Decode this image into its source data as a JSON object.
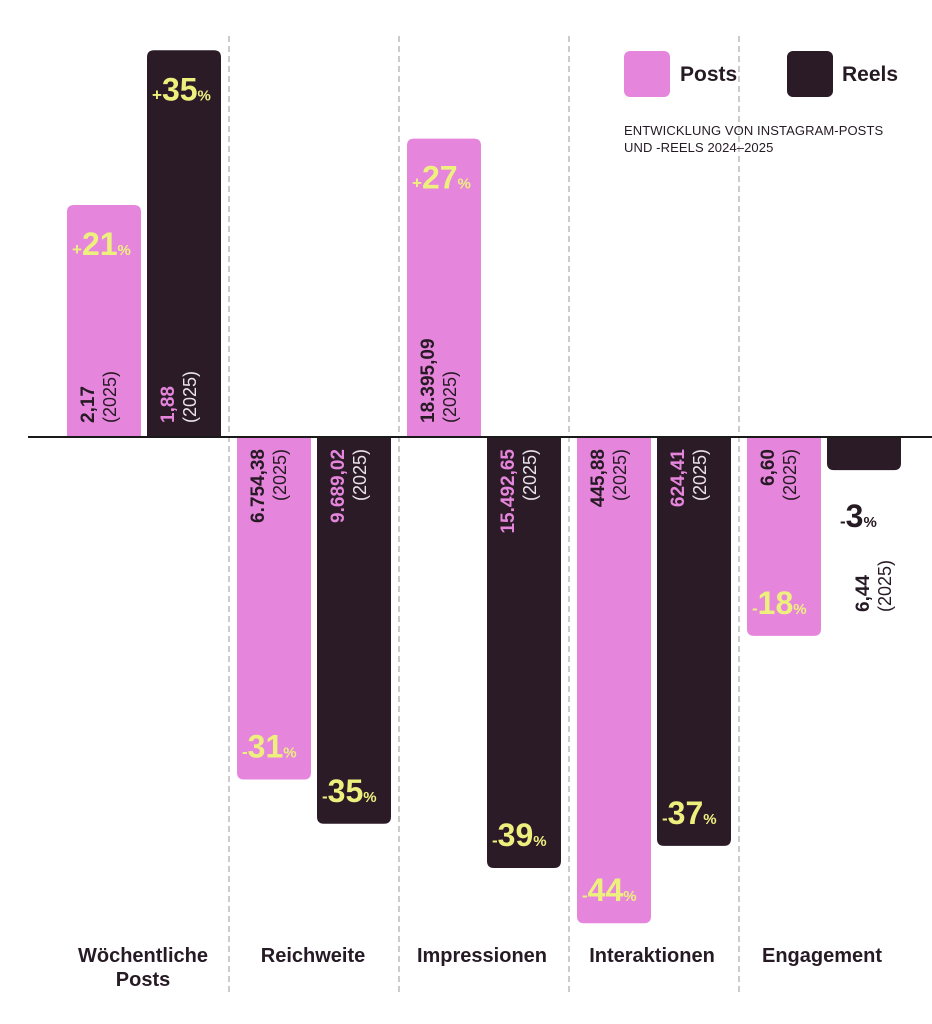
{
  "legend": [
    {
      "label": "Posts",
      "color": "#e685dc"
    },
    {
      "label": "Reels",
      "color": "#2a1b27"
    }
  ],
  "subtitle_lines": [
    "ENTWICKLUNG VON INSTAGRAM-POSTS",
    "UND -REELS 2024–2025"
  ],
  "colors": {
    "posts": "#e685dc",
    "reels": "#2a1b27",
    "change_text": "#eef07e",
    "value_text": "#261a24",
    "value_text_on_dark": "#e685dc",
    "value_text_dark_year": "#e9e2ea",
    "axis": "#1a1a1a",
    "divider": "#9a9a9a"
  },
  "chart_data": {
    "type": "bar",
    "title": "ENTWICKLUNG VON INSTAGRAM-POSTS UND -REELS 2024–2025",
    "categories": [
      "Wöchentliche Posts",
      "Reichweite",
      "Impressionen",
      "Interaktionen",
      "Engagement"
    ],
    "category_label_lines": [
      [
        "Wöchentliche",
        "Posts"
      ],
      [
        "Reichweite"
      ],
      [
        "Impressionen"
      ],
      [
        "Interaktionen"
      ],
      [
        "Engagement"
      ]
    ],
    "ylabel": "",
    "ylim": [
      -50,
      40
    ],
    "grid": false,
    "legend_position": "top-right",
    "series": [
      {
        "name": "Posts",
        "values": [
          21,
          -31,
          27,
          -44,
          -18
        ],
        "change_labels": [
          [
            "+",
            "21",
            "%"
          ],
          [
            "-",
            "31",
            "%"
          ],
          [
            "+",
            "27",
            "%"
          ],
          [
            "-",
            "44",
            "%"
          ],
          [
            "-",
            "18",
            "%"
          ]
        ],
        "value_labels": [
          "2,17",
          "6.754,38",
          "18.395,09",
          "445,88",
          "6,60"
        ],
        "year_labels": [
          "(2025)",
          "(2025)",
          "(2025)",
          "(2025)",
          "(2025)"
        ]
      },
      {
        "name": "Reels",
        "values": [
          35,
          -35,
          -39,
          -37,
          -3
        ],
        "change_labels": [
          [
            "+",
            "35",
            "%"
          ],
          [
            "-",
            "35",
            "%"
          ],
          [
            "-",
            "39",
            "%"
          ],
          [
            "-",
            "37",
            "%"
          ],
          [
            "-",
            "3",
            "%"
          ]
        ],
        "value_labels": [
          "1,88",
          "9.689,02",
          "15.492,65",
          "624,41",
          "6,44"
        ],
        "year_labels": [
          "(2025)",
          "(2025)",
          "(2025)",
          "(2025)",
          "(2025)"
        ]
      }
    ]
  }
}
